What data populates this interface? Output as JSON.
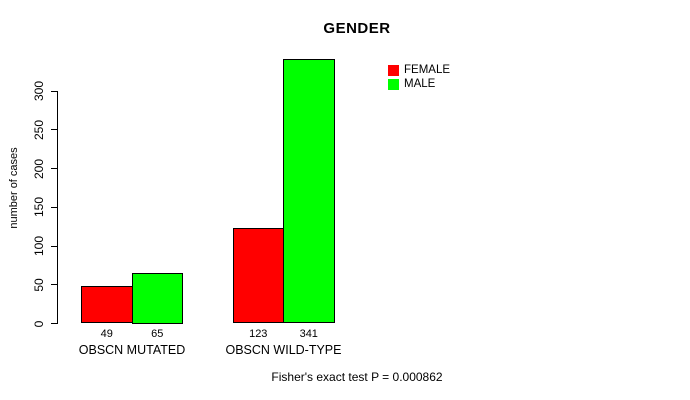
{
  "chart_data": {
    "type": "bar",
    "title": "GENDER",
    "xlabel": "",
    "ylabel": "number of cases",
    "categories": [
      "OBSCN MUTATED",
      "OBSCN WILD-TYPE"
    ],
    "series": [
      {
        "name": "FEMALE",
        "color": "#ff0000",
        "values": [
          49,
          123
        ]
      },
      {
        "name": "MALE",
        "color": "#00ff00",
        "values": [
          65,
          341
        ]
      }
    ],
    "yticks": [
      0,
      50,
      100,
      150,
      200,
      250,
      300
    ],
    "ylim": [
      0,
      345
    ],
    "grid": false,
    "legend_position": "top-right",
    "show_bar_values": true,
    "annotation": "Fisher's exact test P = 0.000862"
  },
  "colors": {
    "background": "#ffffff",
    "axis": "#000000",
    "text": "#000000",
    "female": "#ff0000",
    "male": "#00ff00"
  }
}
